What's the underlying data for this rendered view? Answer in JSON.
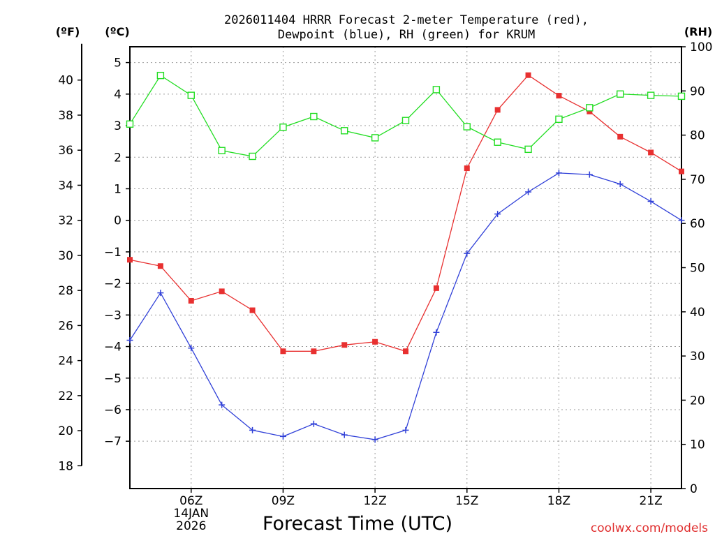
{
  "title_line1": "2026011404 HRRR Forecast 2-meter Temperature (red),",
  "title_line2": "Dewpoint (blue), RH (green) for KRUM",
  "credit": "coolwx.com/models",
  "chart_data": {
    "type": "line",
    "title": "2026011404 HRRR Forecast 2-meter Temperature (red), Dewpoint (blue), RH (green) for KRUM",
    "xlabel": "Forecast Time (UTC)",
    "x_hours": [
      4,
      5,
      6,
      7,
      8,
      9,
      10,
      11,
      12,
      13,
      14,
      15,
      16,
      17,
      18,
      19,
      20,
      21,
      22
    ],
    "xlim": [
      4,
      22
    ],
    "x_ticks": [
      {
        "hour": 6,
        "label": "06Z",
        "sub1": "14JAN",
        "sub2": "2026"
      },
      {
        "hour": 9,
        "label": "09Z"
      },
      {
        "hour": 12,
        "label": "12Z"
      },
      {
        "hour": 15,
        "label": "15Z"
      },
      {
        "hour": 18,
        "label": "18Z"
      },
      {
        "hour": 21,
        "label": "21Z"
      }
    ],
    "axes": {
      "fahrenheit": {
        "unit": "(ºF)",
        "ticks": [
          "18",
          "20",
          "22",
          "24",
          "26",
          "28",
          "30",
          "32",
          "34",
          "36",
          "38",
          "40"
        ]
      },
      "celsius": {
        "unit": "(ºC)",
        "range": [
          -8.5,
          5.5
        ],
        "ticks": [
          "-7",
          "-6",
          "-5",
          "-4",
          "-3",
          "-2",
          "-1",
          "0",
          "1",
          "2",
          "3",
          "4",
          "5"
        ]
      },
      "rh": {
        "unit": "(RH)",
        "range": [
          0,
          100
        ],
        "ticks": [
          "0",
          "10",
          "20",
          "30",
          "40",
          "50",
          "60",
          "70",
          "80",
          "90",
          "100"
        ]
      }
    },
    "series": [
      {
        "name": "Temperature",
        "color": "#e83030",
        "marker": "filled-square",
        "units": "C",
        "values": [
          -1.25,
          -1.45,
          -2.55,
          -2.25,
          -2.85,
          -4.15,
          -4.15,
          -3.95,
          -3.85,
          -4.15,
          -2.15,
          1.65,
          3.5,
          4.6,
          3.95,
          3.45,
          2.65,
          2.15,
          1.55
        ]
      },
      {
        "name": "Dewpoint",
        "color": "#3040d8",
        "marker": "plus",
        "units": "C",
        "values": [
          -3.8,
          -2.3,
          -4.05,
          -5.85,
          -6.65,
          -6.85,
          -6.45,
          -6.8,
          -6.95,
          -6.65,
          -3.55,
          -1.05,
          0.2,
          0.9,
          1.5,
          1.45,
          1.15,
          0.6,
          0.0
        ]
      },
      {
        "name": "RH",
        "color": "#22dd22",
        "marker": "open-square",
        "units": "%",
        "values": [
          82.5,
          93.5,
          89,
          76.5,
          75.2,
          81.8,
          84.2,
          81,
          79.4,
          83.3,
          90.3,
          81.9,
          78.4,
          76.8,
          83.6,
          86.2,
          89.3,
          89,
          88.8
        ]
      }
    ]
  }
}
